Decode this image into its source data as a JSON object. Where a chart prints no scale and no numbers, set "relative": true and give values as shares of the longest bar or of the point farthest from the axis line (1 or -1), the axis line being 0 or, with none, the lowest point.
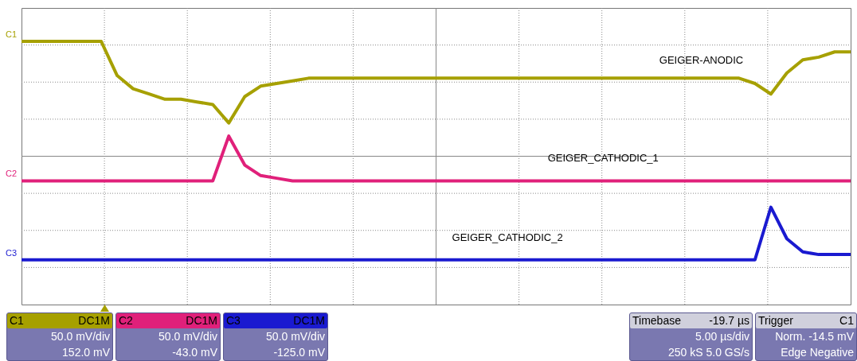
{
  "chart_data": {
    "type": "line",
    "relative": true,
    "grid": true,
    "marker": "none",
    "categories": [
      null,
      null,
      null,
      null,
      null,
      null,
      null,
      null,
      null,
      null,
      null,
      null,
      null,
      null,
      null,
      null,
      null,
      null,
      null,
      null,
      null,
      null,
      null,
      null,
      null,
      null,
      null,
      null,
      null,
      null,
      null,
      null,
      null,
      null,
      null,
      null,
      null,
      null,
      null,
      null,
      null,
      null,
      null,
      null,
      null,
      null,
      null,
      null,
      null,
      null,
      null,
      null,
      null
    ],
    "series": [
      {
        "name": "GEIGER-ANODIC",
        "color": "#a6a000",
        "values": [
          1.0,
          1.0,
          1.0,
          1.0,
          1.0,
          1.0,
          0.87,
          0.82,
          0.8,
          0.78,
          0.78,
          0.77,
          0.76,
          0.69,
          0.79,
          0.83,
          0.84,
          0.85,
          0.86,
          0.86,
          0.86,
          0.86,
          0.86,
          0.86,
          0.86,
          0.86,
          0.86,
          0.86,
          0.86,
          0.86,
          0.86,
          0.86,
          0.86,
          0.86,
          0.86,
          0.86,
          0.86,
          0.86,
          0.86,
          0.86,
          0.86,
          0.86,
          0.86,
          0.86,
          0.86,
          0.86,
          0.84,
          0.8,
          0.88,
          0.93,
          0.94,
          0.96,
          0.96
        ]
      },
      {
        "name": "GEIGER_CATHODIC_1",
        "color": "#e0207a",
        "values": [
          0.47,
          0.47,
          0.47,
          0.47,
          0.47,
          0.47,
          0.47,
          0.47,
          0.47,
          0.47,
          0.47,
          0.47,
          0.47,
          0.64,
          0.53,
          0.49,
          0.48,
          0.47,
          0.47,
          0.47,
          0.47,
          0.47,
          0.47,
          0.47,
          0.47,
          0.47,
          0.47,
          0.47,
          0.47,
          0.47,
          0.47,
          0.47,
          0.47,
          0.47,
          0.47,
          0.47,
          0.47,
          0.47,
          0.47,
          0.47,
          0.47,
          0.47,
          0.47,
          0.47,
          0.47,
          0.47,
          0.47,
          0.47,
          0.47,
          0.47,
          0.47,
          0.47,
          0.47
        ]
      },
      {
        "name": "GEIGER_CATHODIC_2",
        "color": "#1a1ad0",
        "values": [
          0.17,
          0.17,
          0.17,
          0.17,
          0.17,
          0.17,
          0.17,
          0.17,
          0.17,
          0.17,
          0.17,
          0.17,
          0.17,
          0.17,
          0.17,
          0.17,
          0.17,
          0.17,
          0.17,
          0.17,
          0.17,
          0.17,
          0.17,
          0.17,
          0.17,
          0.17,
          0.17,
          0.17,
          0.17,
          0.17,
          0.17,
          0.17,
          0.17,
          0.17,
          0.17,
          0.17,
          0.17,
          0.17,
          0.17,
          0.17,
          0.17,
          0.17,
          0.17,
          0.17,
          0.17,
          0.17,
          0.17,
          0.37,
          0.25,
          0.2,
          0.19,
          0.19,
          0.19
        ]
      }
    ],
    "annotations": [
      "C1",
      "C2",
      "C3",
      "C1 DC1M\n50.0 mV/div\n152.0 mV",
      "C2 DC1M\n50.0 mV/div\n-43.0 mV",
      "C3 DC1M\n50.0 mV/div\n-125.0 mV",
      "Timebase -19.7 µs\n5.00 µs/div\n250 kS 5.0 GS/s",
      "Trigger C1\nNorm. -14.5 mV\nEdge Negative"
    ]
  }
}
